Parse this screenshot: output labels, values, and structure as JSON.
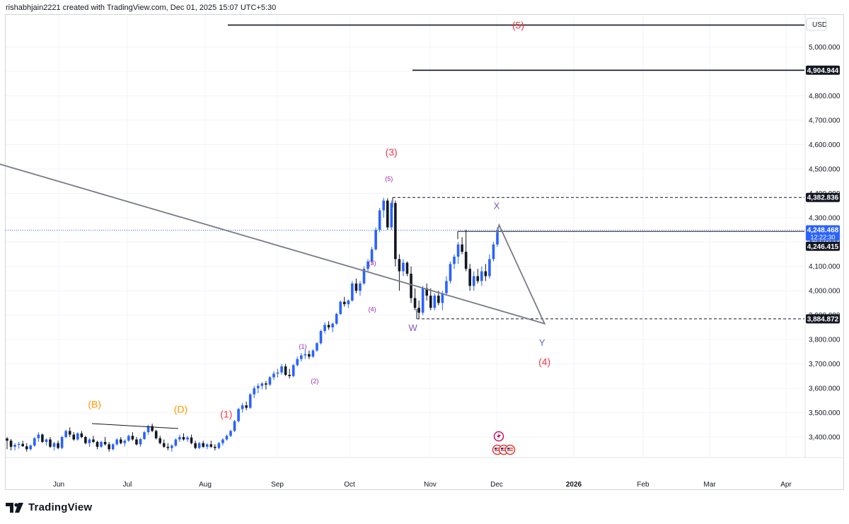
{
  "header": {
    "text": "rishabhjain2221 created with TradingView.com, Dec 01, 2025 15:07 UTC+5:30"
  },
  "footer": {
    "brand": "TradingView"
  },
  "chart_data": {
    "type": "candlestick",
    "currency": "USD",
    "ylim": [
      3340,
      5100
    ],
    "yticks": [
      "5,000.000",
      "4,900.000",
      "4,800.000",
      "4,700.000",
      "4,600.000",
      "4,500.000",
      "4,400.000",
      "4,300.000",
      "4,200.000",
      "4,100.000",
      "4,000.000",
      "3,900.000",
      "3,800.000",
      "3,700.000",
      "3,600.000",
      "3,500.000",
      "3,400.000"
    ],
    "ytick_values": [
      5000,
      4900,
      4800,
      4700,
      4600,
      4500,
      4400,
      4300,
      4200,
      4100,
      4000,
      3900,
      3800,
      3700,
      3600,
      3500,
      3400
    ],
    "xticks": [
      "Jun",
      "Jul",
      "Aug",
      "Sep",
      "Oct",
      "Nov",
      "Dec",
      "2026",
      "Feb",
      "Mar",
      "Apr"
    ],
    "price_labels": {
      "target": "4,904.944",
      "high": "4,382.836",
      "last": "4,248.468",
      "countdown": "12:22:30",
      "prev": "4,246.415",
      "low": "3,884.872"
    },
    "levels": {
      "target": 4904.944,
      "top": 5090,
      "high": 4382.836,
      "last": 4248.468,
      "prev": 4246.415,
      "low": 3884.872
    },
    "candles": [
      [
        3394,
        3400,
        3350,
        3385
      ],
      [
        3385,
        3392,
        3345,
        3360
      ],
      [
        3360,
        3375,
        3345,
        3368
      ],
      [
        3368,
        3380,
        3352,
        3372
      ],
      [
        3372,
        3385,
        3360,
        3362
      ],
      [
        3362,
        3375,
        3340,
        3350
      ],
      [
        3350,
        3370,
        3345,
        3365
      ],
      [
        3365,
        3400,
        3360,
        3395
      ],
      [
        3395,
        3420,
        3380,
        3410
      ],
      [
        3410,
        3415,
        3375,
        3380
      ],
      [
        3380,
        3395,
        3365,
        3390
      ],
      [
        3390,
        3400,
        3355,
        3360
      ],
      [
        3360,
        3380,
        3345,
        3375
      ],
      [
        3375,
        3385,
        3350,
        3355
      ],
      [
        3355,
        3405,
        3350,
        3400
      ],
      [
        3400,
        3430,
        3395,
        3425
      ],
      [
        3425,
        3440,
        3400,
        3410
      ],
      [
        3410,
        3420,
        3385,
        3390
      ],
      [
        3390,
        3420,
        3385,
        3415
      ],
      [
        3415,
        3425,
        3395,
        3400
      ],
      [
        3400,
        3405,
        3370,
        3375
      ],
      [
        3375,
        3395,
        3360,
        3390
      ],
      [
        3390,
        3405,
        3375,
        3380
      ],
      [
        3380,
        3385,
        3350,
        3360
      ],
      [
        3360,
        3385,
        3355,
        3380
      ],
      [
        3380,
        3400,
        3365,
        3370
      ],
      [
        3370,
        3380,
        3340,
        3350
      ],
      [
        3350,
        3375,
        3345,
        3370
      ],
      [
        3370,
        3395,
        3365,
        3390
      ],
      [
        3390,
        3400,
        3370,
        3375
      ],
      [
        3375,
        3390,
        3360,
        3385
      ],
      [
        3385,
        3410,
        3380,
        3405
      ],
      [
        3405,
        3420,
        3385,
        3390
      ],
      [
        3390,
        3400,
        3365,
        3370
      ],
      [
        3370,
        3395,
        3360,
        3392
      ],
      [
        3392,
        3425,
        3388,
        3420
      ],
      [
        3420,
        3450,
        3410,
        3445
      ],
      [
        3445,
        3455,
        3420,
        3425
      ],
      [
        3425,
        3430,
        3390,
        3395
      ],
      [
        3395,
        3405,
        3370,
        3375
      ],
      [
        3375,
        3390,
        3355,
        3360
      ],
      [
        3360,
        3375,
        3345,
        3355
      ],
      [
        3355,
        3370,
        3340,
        3365
      ],
      [
        3365,
        3395,
        3360,
        3390
      ],
      [
        3390,
        3410,
        3380,
        3400
      ],
      [
        3400,
        3415,
        3385,
        3390
      ],
      [
        3390,
        3405,
        3380,
        3398
      ],
      [
        3398,
        3410,
        3370,
        3375
      ],
      [
        3375,
        3385,
        3350,
        3355
      ],
      [
        3355,
        3380,
        3350,
        3375
      ],
      [
        3375,
        3385,
        3355,
        3360
      ],
      [
        3360,
        3375,
        3350,
        3370
      ],
      [
        3370,
        3385,
        3355,
        3360
      ],
      [
        3360,
        3370,
        3345,
        3355
      ],
      [
        3355,
        3380,
        3350,
        3375
      ],
      [
        3375,
        3395,
        3365,
        3390
      ],
      [
        3390,
        3410,
        3385,
        3405
      ],
      [
        3405,
        3430,
        3400,
        3425
      ],
      [
        3425,
        3470,
        3420,
        3465
      ],
      [
        3465,
        3520,
        3460,
        3515
      ],
      [
        3515,
        3540,
        3500,
        3530
      ],
      [
        3530,
        3545,
        3510,
        3520
      ],
      [
        3520,
        3580,
        3515,
        3575
      ],
      [
        3575,
        3610,
        3560,
        3600
      ],
      [
        3600,
        3620,
        3580,
        3610
      ],
      [
        3610,
        3625,
        3595,
        3620
      ],
      [
        3620,
        3630,
        3595,
        3615
      ],
      [
        3615,
        3650,
        3610,
        3645
      ],
      [
        3645,
        3670,
        3635,
        3660
      ],
      [
        3660,
        3680,
        3645,
        3665
      ],
      [
        3665,
        3700,
        3655,
        3690
      ],
      [
        3690,
        3700,
        3650,
        3655
      ],
      [
        3655,
        3680,
        3640,
        3650
      ],
      [
        3650,
        3700,
        3645,
        3695
      ],
      [
        3695,
        3730,
        3690,
        3720
      ],
      [
        3720,
        3745,
        3710,
        3735
      ],
      [
        3735,
        3760,
        3720,
        3740
      ],
      [
        3740,
        3755,
        3720,
        3730
      ],
      [
        3730,
        3760,
        3725,
        3755
      ],
      [
        3755,
        3790,
        3750,
        3785
      ],
      [
        3785,
        3840,
        3780,
        3835
      ],
      [
        3835,
        3870,
        3825,
        3860
      ],
      [
        3860,
        3875,
        3840,
        3850
      ],
      [
        3850,
        3870,
        3830,
        3865
      ],
      [
        3865,
        3910,
        3860,
        3905
      ],
      [
        3905,
        3960,
        3900,
        3955
      ],
      [
        3955,
        3975,
        3935,
        3945
      ],
      [
        3945,
        3965,
        3930,
        3960
      ],
      [
        3960,
        4040,
        3955,
        4030
      ],
      [
        4030,
        4050,
        3990,
        4000
      ],
      [
        4000,
        4040,
        3980,
        4030
      ],
      [
        4030,
        4100,
        4025,
        4090
      ],
      [
        4090,
        4130,
        4080,
        4120
      ],
      [
        4120,
        4180,
        4110,
        4170
      ],
      [
        4170,
        4260,
        4165,
        4250
      ],
      [
        4250,
        4340,
        4240,
        4330
      ],
      [
        4330,
        4382,
        4300,
        4370
      ],
      [
        4370,
        4380,
        4250,
        4260
      ],
      [
        4260,
        4370,
        4250,
        4360
      ],
      [
        4360,
        4370,
        4100,
        4130
      ],
      [
        4130,
        4150,
        4000,
        4080
      ],
      [
        4080,
        4130,
        4060,
        4115
      ],
      [
        4115,
        4120,
        4060,
        4070
      ],
      [
        4070,
        4100,
        3950,
        3970
      ],
      [
        3970,
        4010,
        3920,
        3930
      ],
      [
        3930,
        3960,
        3885,
        3910
      ],
      [
        3910,
        4020,
        3900,
        4010
      ],
      [
        4010,
        4030,
        3960,
        3980
      ],
      [
        3980,
        4010,
        3920,
        3930
      ],
      [
        3930,
        3990,
        3920,
        3980
      ],
      [
        3980,
        4000,
        3940,
        3950
      ],
      [
        3950,
        4000,
        3920,
        3990
      ],
      [
        3990,
        4060,
        3980,
        4040
      ],
      [
        4040,
        4120,
        4030,
        4110
      ],
      [
        4110,
        4150,
        4090,
        4140
      ],
      [
        4140,
        4200,
        4110,
        4190
      ],
      [
        4190,
        4220,
        4150,
        4160
      ],
      [
        4160,
        4250,
        4080,
        4090
      ],
      [
        4090,
        4110,
        4000,
        4020
      ],
      [
        4020,
        4080,
        4000,
        4060
      ],
      [
        4060,
        4090,
        4030,
        4040
      ],
      [
        4040,
        4100,
        4020,
        4080
      ],
      [
        4080,
        4110,
        4040,
        4060
      ],
      [
        4060,
        4150,
        4050,
        4130
      ],
      [
        4130,
        4200,
        4120,
        4190
      ],
      [
        4190,
        4260,
        4180,
        4248
      ]
    ],
    "annotations": [
      {
        "text": "(5)",
        "color": "#f23645",
        "size": 14,
        "date": "Dec 10",
        "price": 5075
      },
      {
        "text": "(3)",
        "color": "#f23645",
        "size": 14,
        "date": "Oct 18",
        "price": 4555
      },
      {
        "text": "(5)",
        "color": "#9c27b0",
        "size": 9,
        "date": "Oct 17",
        "price": 4450
      },
      {
        "text": "(3)",
        "color": "#9c27b0",
        "size": 9,
        "date": "Oct 10",
        "price": 4105
      },
      {
        "text": "(4)",
        "color": "#9c27b0",
        "size": 9,
        "date": "Oct 10",
        "price": 3915
      },
      {
        "text": "(1)",
        "color": "#9c27b0",
        "size": 9,
        "date": "Sep 11",
        "price": 3762
      },
      {
        "text": "(2)",
        "color": "#9c27b0",
        "size": 9,
        "date": "Sep 16",
        "price": 3620
      },
      {
        "text": "(1)",
        "color": "#f23645",
        "size": 14,
        "date": "Aug 10",
        "price": 3480
      },
      {
        "text": "(B)",
        "color": "#ff9800",
        "size": 14,
        "date": "Jun 16",
        "price": 3520
      },
      {
        "text": "(D)",
        "color": "#ff9800",
        "size": 14,
        "date": "Jul 22",
        "price": 3500
      },
      {
        "text": "X",
        "color": "#7e57c2",
        "size": 13,
        "date": "Dec 01",
        "price": 4335
      },
      {
        "text": "W",
        "color": "#7e57c2",
        "size": 13,
        "date": "Oct 27",
        "price": 3835
      },
      {
        "text": "Y",
        "color": "#5c6bc0",
        "size": 13,
        "date": "Dec 20",
        "price": 3775
      },
      {
        "text": "(4)",
        "color": "#f23645",
        "size": 14,
        "date": "Dec 21",
        "price": 3695
      }
    ],
    "projection": [
      [
        "Dec 01",
        4235
      ],
      [
        "Dec 02",
        4270
      ],
      [
        "Dec 21",
        3865
      ],
      [
        "Jan 16",
        4840
      ]
    ]
  }
}
